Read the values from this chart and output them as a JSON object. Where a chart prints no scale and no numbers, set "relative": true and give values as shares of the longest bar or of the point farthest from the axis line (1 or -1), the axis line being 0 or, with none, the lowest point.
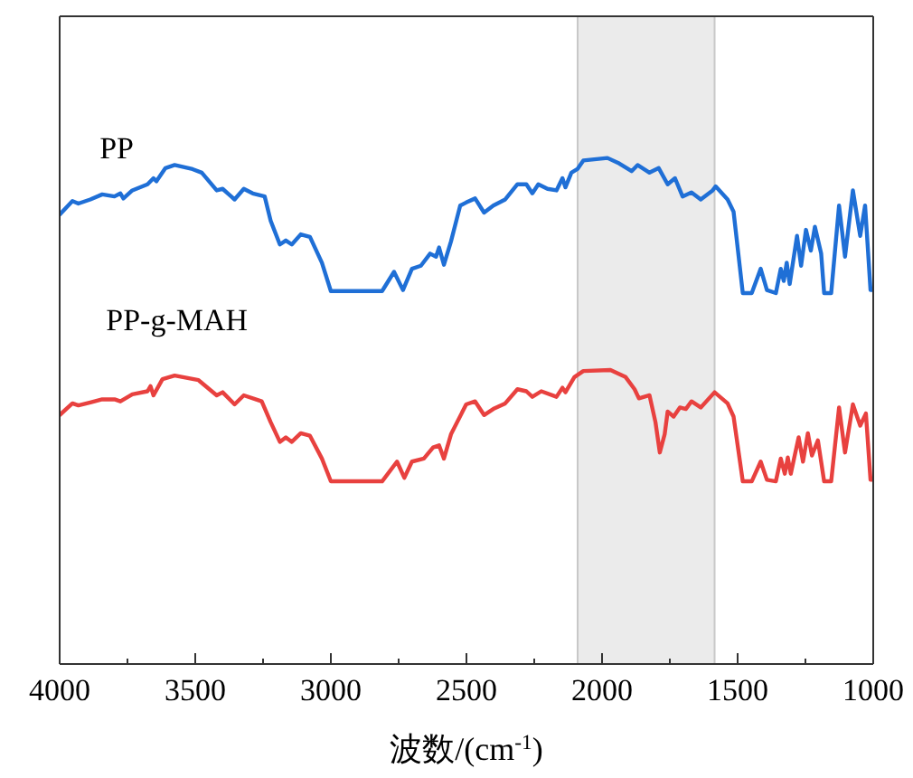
{
  "chart_data": {
    "type": "line",
    "relative": true,
    "xlabel": "波数/(cm$^{-1}$)",
    "xlim": [
      4000,
      1000
    ],
    "xticks": [
      4000,
      {
        "value": 3750,
        "label": null
      },
      3500,
      {
        "value": 3250,
        "label": null
      },
      3000,
      {
        "value": 2750,
        "label": null
      },
      2500,
      {
        "value": 2250,
        "label": null
      },
      2000,
      {
        "value": 1750,
        "label": null
      },
      1500,
      {
        "value": 1250,
        "label": null
      },
      1000
    ],
    "bands": [
      {
        "axis": "x",
        "from": 2090,
        "to": 1585,
        "color": "#ebebeb"
      }
    ],
    "series": [
      {
        "name": "PP",
        "color": "#1f6fd6",
        "x": [
          4000,
          3953,
          3931,
          3887,
          3843,
          3798,
          3776,
          3765,
          3732,
          3676,
          3654,
          3643,
          3610,
          3576,
          3510,
          3476,
          3421,
          3399,
          3355,
          3321,
          3288,
          3244,
          3222,
          3188,
          3166,
          3144,
          3111,
          3077,
          3033,
          3000,
          2811,
          2767,
          2734,
          2701,
          2668,
          2634,
          2612,
          2601,
          2583,
          2557,
          2523,
          2501,
          2468,
          2435,
          2401,
          2357,
          2312,
          2279,
          2257,
          2235,
          2201,
          2168,
          2146,
          2135,
          2113,
          2091,
          2069,
          1980,
          1936,
          1891,
          1869,
          1825,
          1791,
          1758,
          1731,
          1703,
          1670,
          1636,
          1592,
          1581,
          1537,
          1515,
          1481,
          1448,
          1415,
          1392,
          1359,
          1341,
          1330,
          1319,
          1308,
          1281,
          1266,
          1248,
          1230,
          1215,
          1192,
          1181,
          1155,
          1126,
          1104,
          1075,
          1048,
          1030,
          1010,
          1000
        ],
        "values": [
          0.888,
          0.915,
          0.91,
          0.918,
          0.928,
          0.924,
          0.93,
          0.92,
          0.936,
          0.948,
          0.96,
          0.954,
          0.98,
          0.986,
          0.978,
          0.971,
          0.936,
          0.939,
          0.918,
          0.939,
          0.93,
          0.924,
          0.876,
          0.829,
          0.837,
          0.829,
          0.849,
          0.844,
          0.793,
          0.737,
          0.737,
          0.775,
          0.739,
          0.781,
          0.787,
          0.811,
          0.805,
          0.823,
          0.789,
          0.835,
          0.906,
          0.912,
          0.92,
          0.892,
          0.906,
          0.918,
          0.948,
          0.948,
          0.93,
          0.948,
          0.939,
          0.936,
          0.96,
          0.942,
          0.971,
          0.978,
          0.995,
          1,
          0.989,
          0.974,
          0.986,
          0.971,
          0.98,
          0.948,
          0.96,
          0.924,
          0.932,
          0.918,
          0.936,
          0.944,
          0.918,
          0.894,
          0.733,
          0.733,
          0.781,
          0.739,
          0.733,
          0.781,
          0.757,
          0.793,
          0.751,
          0.846,
          0.787,
          0.858,
          0.817,
          0.864,
          0.811,
          0.733,
          0.733,
          0.906,
          0.805,
          0.936,
          0.846,
          0.906,
          0.739,
          0.739
        ]
      },
      {
        "name": "PP-g-MAH",
        "color": "#e8413f",
        "x": [
          4000,
          3953,
          3931,
          3887,
          3843,
          3798,
          3776,
          3732,
          3676,
          3665,
          3654,
          3621,
          3576,
          3488,
          3421,
          3399,
          3355,
          3321,
          3255,
          3222,
          3188,
          3166,
          3144,
          3111,
          3077,
          3033,
          3000,
          2811,
          2756,
          2729,
          2701,
          2657,
          2623,
          2601,
          2583,
          2557,
          2501,
          2468,
          2435,
          2401,
          2357,
          2312,
          2279,
          2257,
          2224,
          2168,
          2146,
          2135,
          2102,
          2069,
          1969,
          1913,
          1880,
          1864,
          1825,
          1803,
          1787,
          1769,
          1758,
          1736,
          1713,
          1691,
          1670,
          1636,
          1585,
          1537,
          1515,
          1481,
          1448,
          1415,
          1392,
          1359,
          1341,
          1326,
          1315,
          1304,
          1275,
          1259,
          1241,
          1226,
          1204,
          1181,
          1155,
          1126,
          1104,
          1075,
          1048,
          1027,
          1010,
          1000
        ],
        "values": [
          0.492,
          0.515,
          0.511,
          0.517,
          0.523,
          0.523,
          0.519,
          0.533,
          0.539,
          0.549,
          0.531,
          0.563,
          0.57,
          0.561,
          0.531,
          0.537,
          0.513,
          0.531,
          0.519,
          0.478,
          0.439,
          0.448,
          0.439,
          0.456,
          0.451,
          0.406,
          0.361,
          0.361,
          0.4,
          0.368,
          0.4,
          0.406,
          0.428,
          0.432,
          0.406,
          0.454,
          0.513,
          0.519,
          0.492,
          0.504,
          0.515,
          0.543,
          0.539,
          0.528,
          0.539,
          0.528,
          0.546,
          0.537,
          0.567,
          0.579,
          0.581,
          0.567,
          0.543,
          0.525,
          0.531,
          0.478,
          0.418,
          0.454,
          0.499,
          0.489,
          0.507,
          0.504,
          0.519,
          0.507,
          0.537,
          0.515,
          0.489,
          0.361,
          0.361,
          0.4,
          0.364,
          0.361,
          0.406,
          0.376,
          0.408,
          0.376,
          0.448,
          0.4,
          0.456,
          0.412,
          0.442,
          0.361,
          0.361,
          0.507,
          0.418,
          0.513,
          0.471,
          0.495,
          0.364,
          0.364
        ]
      }
    ]
  }
}
